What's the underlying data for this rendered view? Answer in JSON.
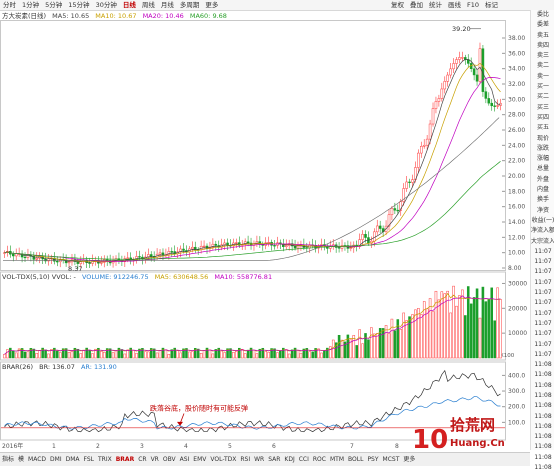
{
  "toolbar": {
    "periods": [
      "分时",
      "1分钟",
      "5分钟",
      "15分钟",
      "30分钟",
      "日线",
      "周线",
      "月线",
      "多周期",
      "更多"
    ],
    "active_period": "日线",
    "right_buttons": [
      "复权",
      "叠加",
      "统计",
      "画线",
      "F10",
      "标记"
    ]
  },
  "price_legend": {
    "name": "方大炭素(日线)",
    "ma5": "MA5: 10.65",
    "ma10": "MA10: 10.67",
    "ma20": "MA20: 10.46",
    "ma60": "MA60: 9.68"
  },
  "price_axis": [
    "38.00",
    "36.00",
    "34.00",
    "32.00",
    "30.00",
    "28.00",
    "26.00",
    "24.00",
    "22.00",
    "20.00",
    "18.00",
    "16.00",
    "14.00",
    "12.00",
    "10.00",
    "8.00"
  ],
  "price_annotations": {
    "high": "39.20",
    "low": "8.37"
  },
  "volume_legend": {
    "name": "VOL-TDX(5,10) VVOL: -",
    "volume": "VOLUME: 912246.75",
    "ma5": "MA5: 630648.56",
    "ma10": "MA10: 558776.81"
  },
  "volume_axis": [
    "30000",
    "20000",
    "10000"
  ],
  "volume_unit": "X100",
  "brar_legend": {
    "name": "BRAR(26)",
    "br": "BR: 136.07",
    "ar": "AR: 131.90"
  },
  "brar_axis": [
    "400.0",
    "300.0",
    "200.0",
    "100.0"
  ],
  "brar_annotation": "跌落谷底，股价随时有可能反弹",
  "x_axis": [
    "2016年",
    "1",
    "2",
    "3",
    "4",
    "5",
    "6",
    "7",
    "8",
    "9"
  ],
  "sidebar": {
    "items": [
      "委比",
      "委差",
      "卖五",
      "卖四",
      "卖三",
      "卖二",
      "卖一",
      "买一",
      "买二",
      "买三",
      "买四",
      "买五",
      "现价",
      "涨跌",
      "涨幅",
      "总量",
      "外盘",
      "内盘",
      "换手",
      "净资",
      "收益(一)",
      "净流入额",
      "大宗流入",
      "11:07",
      "11:07",
      "11:07",
      "11:07",
      "11:07",
      "11:07",
      "11:07",
      "11:07",
      "11:07",
      "11:07",
      "11:07",
      "11:08",
      "11:08",
      "11:08",
      "11:08",
      "11:08",
      "11:08",
      "11:08",
      "11:08",
      "11:08",
      "11:08",
      "11:08"
    ]
  },
  "bottom_tabs": [
    "指标",
    "模",
    "MACD",
    "DMI",
    "DMA",
    "FSL",
    "TRIX",
    "BRAR",
    "CR",
    "VR",
    "OBV",
    "ASI",
    "EMV",
    "VOL-TDX",
    "RSI",
    "WR",
    "SAR",
    "KDJ",
    "CCI",
    "ROC",
    "MTM",
    "BOLL",
    "PSY",
    "MCST",
    "更多"
  ],
  "active_tab": "BRAR",
  "watermark": {
    "number": "10",
    "brand": "拾荒网",
    "domain": "Huang.Cn"
  },
  "colors": {
    "up": "#ff3b3b",
    "down": "#1a9e2a",
    "ma5": "#444444",
    "ma10": "#c8a000",
    "ma20": "#c000c0",
    "ma60": "#2aa02a",
    "br": "#333333",
    "ar": "#2a7fd0",
    "accent": "#c00000"
  }
}
